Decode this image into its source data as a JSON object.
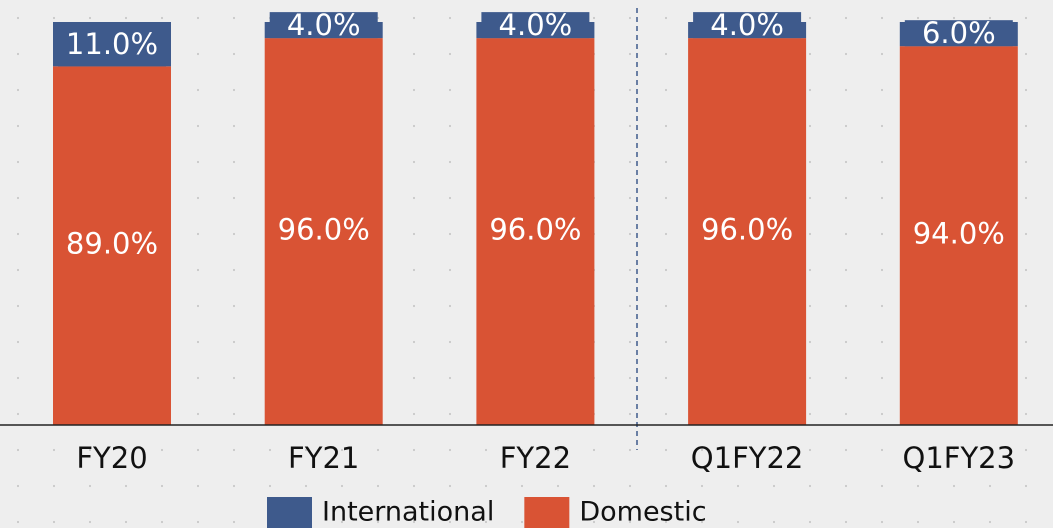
{
  "chart_data": {
    "type": "stacked_bar",
    "categories": [
      "FY20",
      "FY21",
      "FY22",
      "Q1FY22",
      "Q1FY23"
    ],
    "series": [
      {
        "name": "Domestic",
        "color": "#d95334",
        "values": [
          89,
          96,
          96,
          96,
          94
        ],
        "value_labels": [
          "89.0%",
          "96.0%",
          "96.0%",
          "96.0%",
          "94.0%"
        ]
      },
      {
        "name": "International",
        "color": "#3e5a8c",
        "values": [
          11,
          4,
          4,
          4,
          6
        ],
        "value_labels": [
          "11.0%",
          "4.0%",
          "4.0%",
          "4.0%",
          "6.0%"
        ]
      }
    ],
    "ylim": [
      0,
      100
    ],
    "legend": "bottom"
  }
}
